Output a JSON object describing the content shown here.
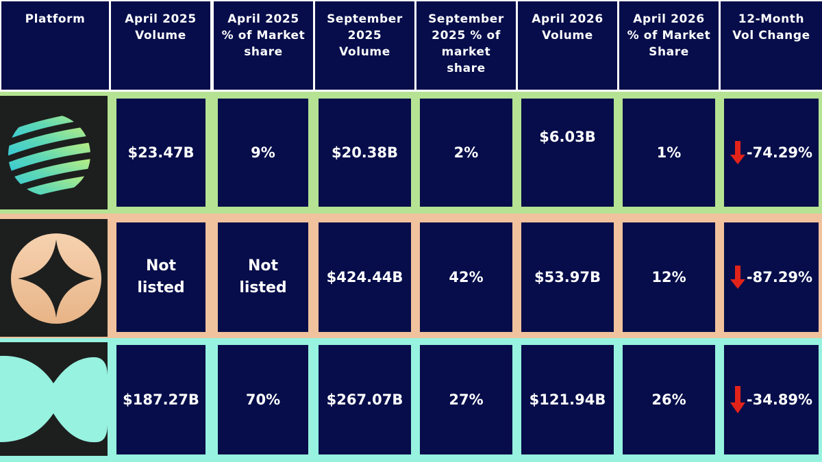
{
  "headers": [
    "Platform",
    "April 2025\nVolume",
    "April 2025\n% of Market\nshare",
    "September\n2025\nVolume",
    "September\n2025 % of\nmarket\nshare",
    "April 2026\nVolume",
    "April 2026\n% of Market\nShare",
    "12-Month\nVol Change"
  ],
  "rows": [
    {
      "logo": "striped-sphere-logo",
      "accent": "#b5e393",
      "apr2025_volume": "$23.47B",
      "apr2025_share": "9%",
      "sep2025_volume": "$20.38B",
      "sep2025_share": "2%",
      "apr2026_volume": "$6.03B",
      "apr2026_share": "1%",
      "change": "-74.29%"
    },
    {
      "logo": "four-point-star-circle-logo",
      "accent": "#f0c29d",
      "apr2025_volume": "Not\nlisted",
      "apr2025_share": "Not\nlisted",
      "sep2025_volume": "$424.44B",
      "sep2025_share": "42%",
      "apr2026_volume": "$53.97B",
      "apr2026_share": "12%",
      "change": "-87.29%"
    },
    {
      "logo": "wave-shape-logo",
      "accent": "#97f2e0",
      "apr2025_volume": "$187.27B",
      "apr2025_share": "70%",
      "sep2025_volume": "$267.07B",
      "sep2025_share": "27%",
      "apr2026_volume": "$121.94B",
      "apr2026_share": "26%",
      "change": "-34.89%"
    }
  ],
  "colors": {
    "header_bg": "#060d4a",
    "cell_bg": "#060d4a",
    "down_arrow": "#e2231a"
  }
}
